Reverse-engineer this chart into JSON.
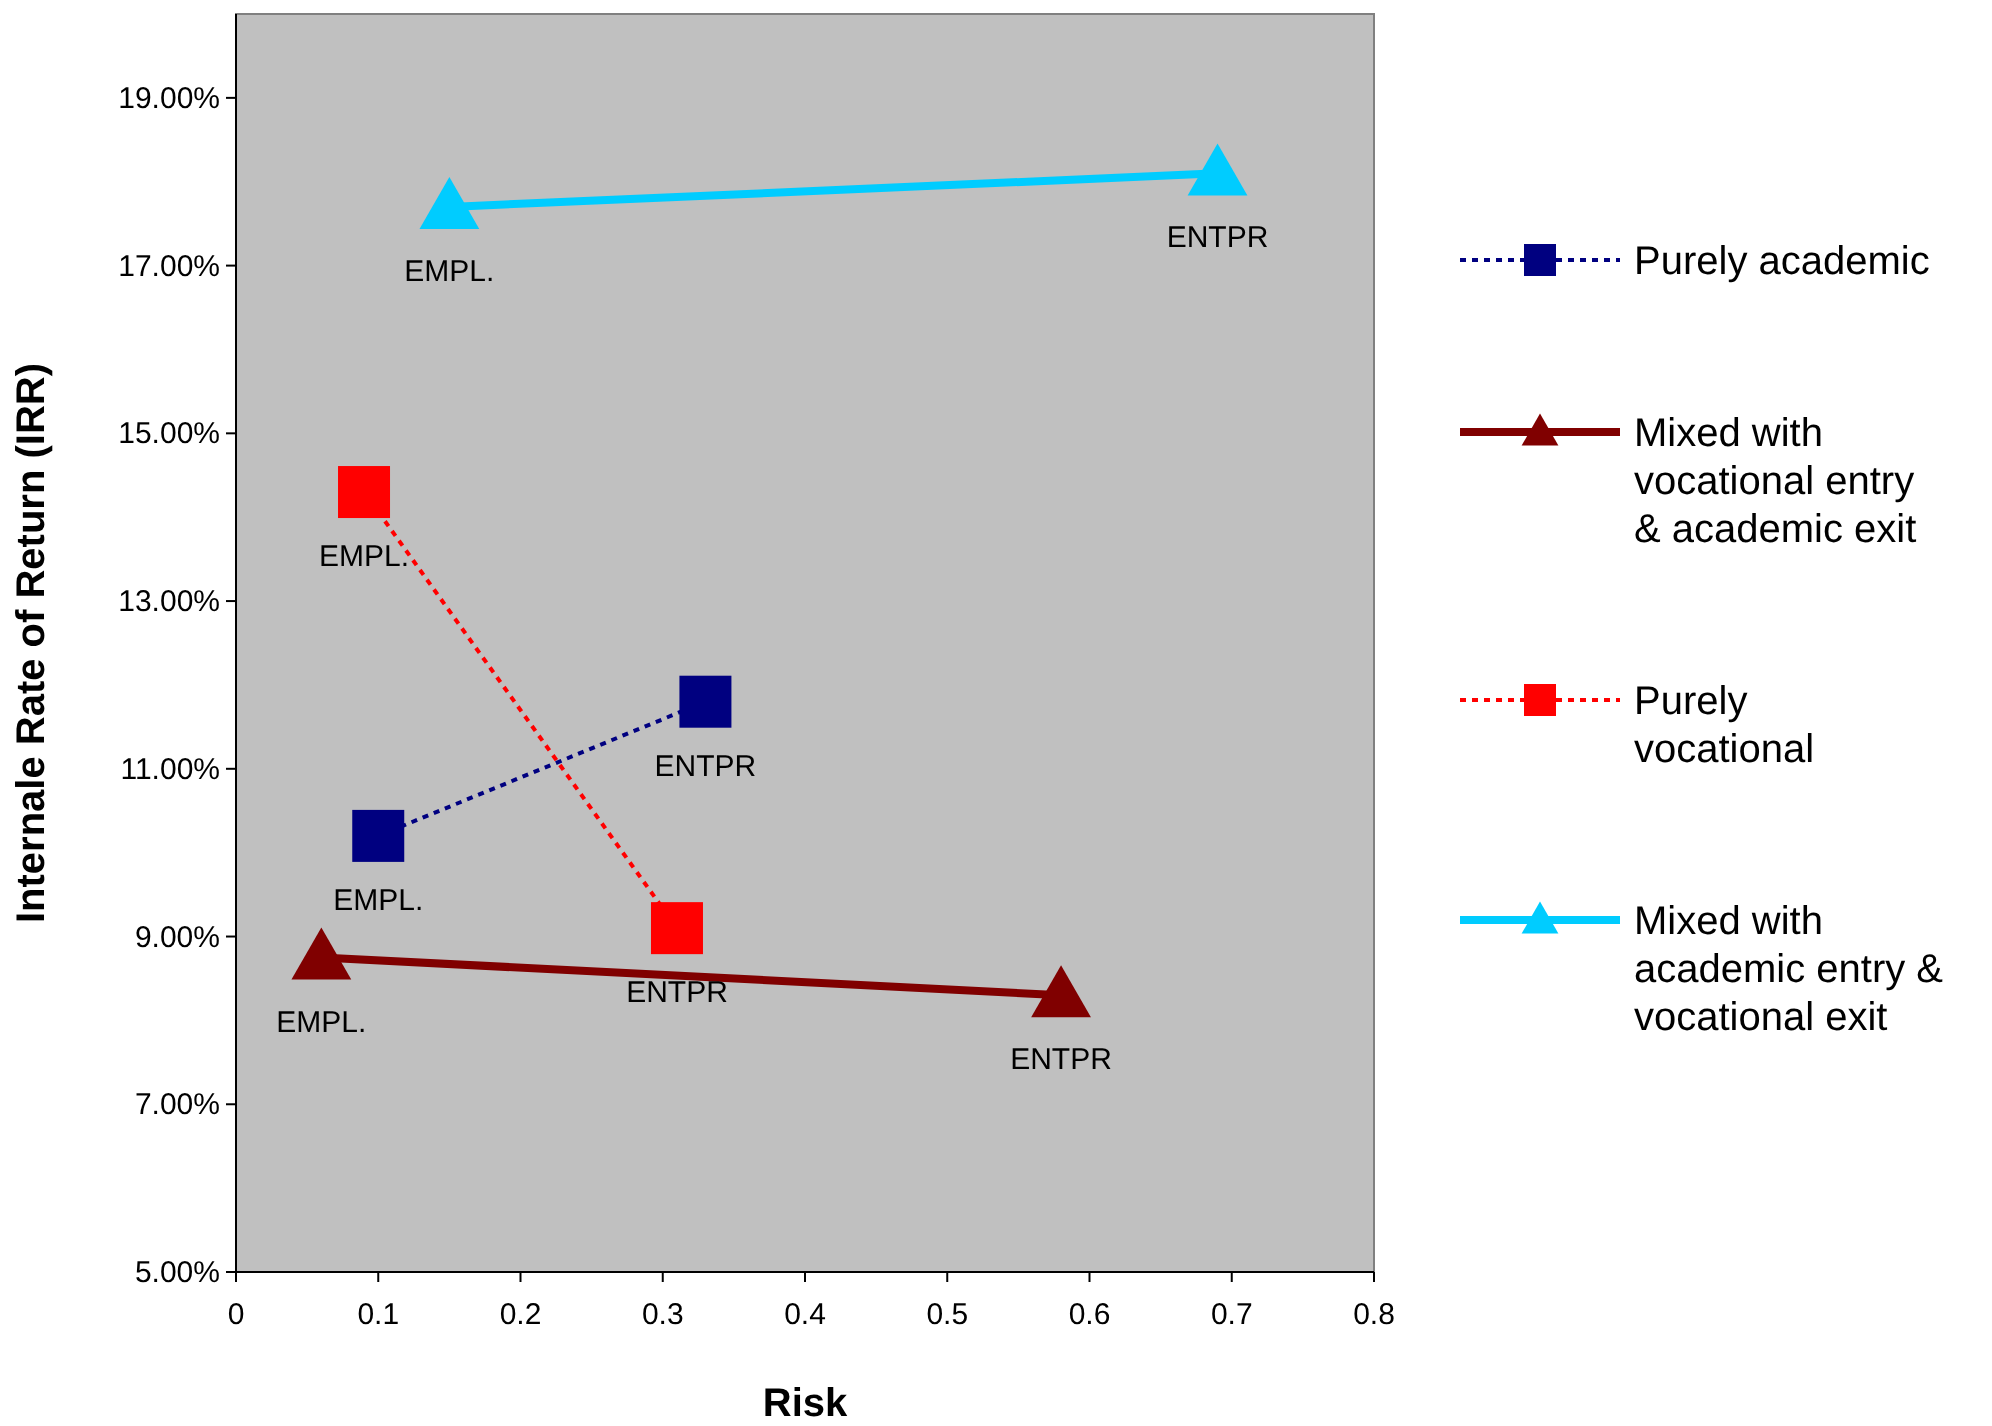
{
  "chart_data": {
    "type": "line",
    "xlabel": "Risk",
    "ylabel": "Internale Rate of Return (IRR)",
    "xlim": [
      0,
      0.8
    ],
    "xticks": [
      0,
      0.1,
      0.2,
      0.3,
      0.4,
      0.5,
      0.6,
      0.7,
      0.8
    ],
    "ylim": [
      5,
      20
    ],
    "yticks": [
      {
        "value": 5,
        "label": "5.00%"
      },
      {
        "value": 7,
        "label": "7.00%"
      },
      {
        "value": 9,
        "label": "9.00%"
      },
      {
        "value": 11,
        "label": "11.00%"
      },
      {
        "value": 13,
        "label": "13.00%"
      },
      {
        "value": 15,
        "label": "15.00%"
      },
      {
        "value": 17,
        "label": "17.00%"
      },
      {
        "value": 19,
        "label": "19.00%"
      }
    ],
    "grid": false,
    "legend": "right",
    "series": [
      {
        "name": "Purely academic",
        "color": "#000080",
        "x": [
          0.1,
          0.33
        ],
        "values": [
          10.2,
          11.8
        ],
        "marker": "square",
        "line_style": "dotted"
      },
      {
        "name": "Mixed with vocational entry & academic exit",
        "color": "#800000",
        "x": [
          0.06,
          0.58
        ],
        "values": [
          8.75,
          8.3
        ],
        "marker": "triangle",
        "line_style": "solid"
      },
      {
        "name": "Purely vocational",
        "color": "#ff0000",
        "x": [
          0.09,
          0.31
        ],
        "values": [
          14.3,
          9.1
        ],
        "marker": "square",
        "line_style": "dotted"
      },
      {
        "name": "Mixed with academic entry & vocational exit",
        "color": "#00ccff",
        "x": [
          0.15,
          0.69
        ],
        "values": [
          17.7,
          18.1
        ],
        "marker": "triangle",
        "line_style": "solid"
      }
    ],
    "annotations": [
      {
        "text": "EMPL.",
        "x": 0.1,
        "y": 10.2
      },
      {
        "text": "ENTPR",
        "x": 0.33,
        "y": 11.8
      },
      {
        "text": "EMPL.",
        "x": 0.06,
        "y": 8.75
      },
      {
        "text": "ENTPR",
        "x": 0.58,
        "y": 8.3
      },
      {
        "text": "EMPL.",
        "x": 0.09,
        "y": 14.3
      },
      {
        "text": "ENTPR",
        "x": 0.31,
        "y": 9.1
      },
      {
        "text": "EMPL.",
        "x": 0.15,
        "y": 17.7
      },
      {
        "text": "ENTPR",
        "x": 0.69,
        "y": 18.1
      }
    ]
  }
}
